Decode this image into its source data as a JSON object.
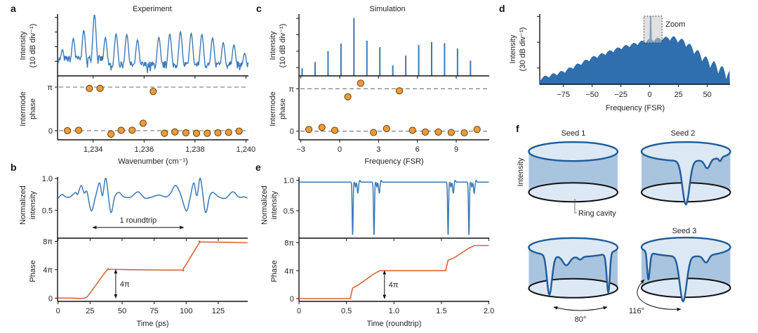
{
  "panel_labels": {
    "a": "a",
    "b": "b",
    "c": "c",
    "d": "d",
    "e": "e",
    "f": "f"
  },
  "colors": {
    "intensity": "#3a78b8",
    "phase_line": "#d9643a",
    "phase_point": "#f29a36",
    "point_edge": "#4a3210",
    "dash": "#888888",
    "cyl_side": "#a9c4de",
    "cyl_top": "#dce8f4",
    "cyl_rim": "#1f5b9a"
  },
  "chart_data": [
    {
      "id": "a",
      "type": "line+scatter",
      "title": "Experiment",
      "xlabel": "Wavenumber (cm⁻¹)",
      "xlim": [
        1232.6,
        1240.1
      ],
      "xticks": [
        1234,
        1236,
        1238,
        1240
      ],
      "xtick_labels": [
        "1,234",
        "1,236",
        "1,238",
        "1,240"
      ],
      "top": {
        "ylabel": [
          "Intensity",
          "(10 dB div⁻¹)"
        ],
        "yticks_db": [
          10,
          20,
          30,
          40
        ],
        "ylim_db": [
          0,
          42
        ],
        "peaks": [
          [
            1232.79,
            16
          ],
          [
            1233.22,
            23.6
          ],
          [
            1233.63,
            29.2
          ],
          [
            1234.05,
            39.9
          ],
          [
            1234.48,
            24.2
          ],
          [
            1234.9,
            26.6
          ],
          [
            1235.32,
            26.3
          ],
          [
            1235.74,
            22.6
          ],
          [
            1236.58,
            24.4
          ],
          [
            1237.01,
            26.6
          ],
          [
            1237.43,
            28.2
          ],
          [
            1237.85,
            27.1
          ],
          [
            1238.27,
            26.3
          ],
          [
            1238.69,
            24
          ],
          [
            1239.11,
            20.7
          ],
          [
            1239.53,
            19.2
          ],
          [
            1239.95,
            13.5
          ]
        ]
      },
      "bottom": {
        "ylabel": [
          "Intermode",
          "phase"
        ],
        "ytick_labels": [
          "π",
          "0"
        ],
        "yticks_pi": [
          1,
          0
        ],
        "ylim_pi": [
          -0.21,
          1.26
        ],
        "points": [
          [
            1232.99,
            0
          ],
          [
            1233.43,
            0.01
          ],
          [
            1233.85,
            0.97
          ],
          [
            1234.27,
            0.97
          ],
          [
            1234.7,
            -0.08
          ],
          [
            1235.1,
            0.01
          ],
          [
            1235.53,
            0.01
          ],
          [
            1235.96,
            0.17
          ],
          [
            1236.36,
            0.9
          ],
          [
            1236.8,
            -0.06
          ],
          [
            1237.21,
            -0.03
          ],
          [
            1237.64,
            -0.05
          ],
          [
            1238.06,
            -0.06
          ],
          [
            1238.48,
            -0.06
          ],
          [
            1238.9,
            -0.05
          ],
          [
            1239.32,
            -0.04
          ],
          [
            1239.73,
            -0.01
          ]
        ]
      }
    },
    {
      "id": "b",
      "type": "line",
      "xlabel": "Time (ps)",
      "xlim": [
        0,
        148
      ],
      "xticks": [
        0,
        25,
        50,
        75,
        100,
        125
      ],
      "xtick_labels": [
        "0",
        "25",
        "50",
        "75",
        "100",
        "125"
      ],
      "top": {
        "ylabel": [
          "Normalized",
          "intensity"
        ],
        "yticks": [
          1.0,
          0.5
        ],
        "ytick_labels": [
          "1.0",
          "0.5"
        ],
        "points": [
          [
            0,
            0.69
          ],
          [
            3.1,
            0.75
          ],
          [
            5.8,
            0.71
          ],
          [
            9.5,
            0.71
          ],
          [
            13.5,
            0.78
          ],
          [
            15.3,
            0.75
          ],
          [
            18,
            0.89
          ],
          [
            20.4,
            0.77
          ],
          [
            22.6,
            0.79
          ],
          [
            25.9,
            0.49
          ],
          [
            29.2,
            0.71
          ],
          [
            32.3,
            0.93
          ],
          [
            34.7,
            0.73
          ],
          [
            37.4,
            1.0
          ],
          [
            41.1,
            0.47
          ],
          [
            44.2,
            0.71
          ],
          [
            47.4,
            0.78
          ],
          [
            51.5,
            0.71
          ],
          [
            56.9,
            0.71
          ],
          [
            62.4,
            0.79
          ],
          [
            67.9,
            0.69
          ],
          [
            73.4,
            0.71
          ],
          [
            78.8,
            0.74
          ],
          [
            84.3,
            0.71
          ],
          [
            87.9,
            0.77
          ],
          [
            91.6,
            0.89
          ],
          [
            95.3,
            0.77
          ],
          [
            100,
            0.49
          ],
          [
            102.9,
            0.68
          ],
          [
            105.8,
            0.93
          ],
          [
            108.4,
            0.73
          ],
          [
            111.1,
            1.0
          ],
          [
            115,
            0.47
          ],
          [
            118.1,
            0.71
          ],
          [
            120.8,
            0.78
          ],
          [
            125.4,
            0.71
          ],
          [
            130.8,
            0.69
          ],
          [
            136.3,
            0.79
          ],
          [
            140.9,
            0.71
          ],
          [
            145.4,
            0.71
          ],
          [
            147.8,
            0.69
          ]
        ],
        "annotation": {
          "text": "1 roundtrip",
          "from": 27,
          "to": 98,
          "level": 0.23
        }
      },
      "bottom": {
        "ylabel": [
          "Phase"
        ],
        "yticks_pi": [
          8,
          4,
          0
        ],
        "ytick_labels": [
          "8π",
          "4π",
          "0"
        ],
        "points": [
          [
            0,
            0
          ],
          [
            10,
            0
          ],
          [
            18,
            -0.05
          ],
          [
            22,
            0.1
          ],
          [
            25,
            0.7
          ],
          [
            38,
            3.9
          ],
          [
            41,
            4.05
          ],
          [
            60,
            4.0
          ],
          [
            95,
            3.95
          ],
          [
            98,
            4.2
          ],
          [
            110,
            7.7
          ],
          [
            113,
            7.9
          ],
          [
            148,
            7.8
          ]
        ],
        "annotation": {
          "text": "4π",
          "at": 45,
          "from": 0,
          "to": 4
        }
      }
    },
    {
      "id": "c",
      "type": "bar+scatter",
      "title": "Simulation",
      "xlabel": "Frequency (FSR)",
      "xlim": [
        -3.1,
        11.6
      ],
      "xticks": [
        -3,
        0,
        3,
        6,
        9
      ],
      "xtick_labels": [
        "−3",
        "0",
        "3",
        "6",
        "9"
      ],
      "top": {
        "ylabel": [
          "Intensity",
          "(10 dB div⁻¹)"
        ],
        "yticks_db": [
          5,
          15,
          25,
          35
        ],
        "ylim_db": [
          0,
          37
        ],
        "x": [
          -2.9,
          -1.9,
          -0.9,
          0.1,
          1.1,
          2.1,
          3.1,
          4.1,
          5.1,
          6.1,
          7.1,
          8.1,
          9.1,
          10.1
        ],
        "values_db": [
          4.6,
          8.4,
          15.1,
          19.7,
          35.2,
          21.4,
          17.5,
          6.4,
          12.4,
          18.8,
          20.6,
          19.9,
          16.7,
          9.3
        ]
      },
      "bottom": {
        "ylabel": [
          "Intermode",
          "phase"
        ],
        "ytick_labels": [
          "π",
          "0"
        ],
        "yticks_pi": [
          1,
          0
        ],
        "points": [
          [
            -2.38,
            0.04
          ],
          [
            -1.37,
            0.09
          ],
          [
            -0.38,
            0.02
          ],
          [
            0.63,
            0.81
          ],
          [
            1.62,
            1.13
          ],
          [
            2.61,
            -0.03
          ],
          [
            3.62,
            0.06
          ],
          [
            4.61,
            0.95
          ],
          [
            5.62,
            0.02
          ],
          [
            6.61,
            -0.02
          ],
          [
            7.62,
            -0.02
          ],
          [
            8.61,
            -0.03
          ],
          [
            9.62,
            -0.04
          ],
          [
            10.61,
            0.04
          ]
        ]
      }
    },
    {
      "id": "d",
      "type": "area",
      "xlabel": "Frequency (FSR)",
      "xlim": [
        -95.6,
        69.5
      ],
      "xticks": [
        -75,
        -50,
        -25,
        0,
        25,
        50
      ],
      "xtick_labels": [
        "−75",
        "−50",
        "−25",
        "0",
        "25",
        "50"
      ],
      "ylabel": [
        "Intensity",
        "(30 dB div⁻¹)"
      ],
      "yticks_db": [
        19,
        49,
        79
      ],
      "envelope": [
        [
          -95.6,
          8
        ],
        [
          -75,
          16
        ],
        [
          -50,
          32
        ],
        [
          -25,
          44
        ],
        [
          0,
          53
        ],
        [
          20,
          56
        ],
        [
          30,
          52
        ],
        [
          50,
          31
        ],
        [
          69.5,
          16
        ]
      ],
      "comb_period": 7,
      "spike": [
        1,
        79
      ],
      "zoom_box": {
        "label": "Zoom",
        "from": -5,
        "to": 10.7
      }
    },
    {
      "id": "e",
      "type": "line",
      "xlabel": "Time (roundtrip)",
      "xlim": [
        0,
        2
      ],
      "xticks": [
        0,
        0.5,
        1,
        1.5,
        2
      ],
      "xtick_labels": [
        "0",
        "0.5",
        "1.0",
        "1.5",
        "2.0"
      ],
      "top": {
        "ylabel": [
          "Normalized",
          "intensity"
        ],
        "yticks": [
          1.0,
          0.5
        ],
        "ytick_labels": [
          "1.0",
          "0.5"
        ],
        "baseline": 0.97,
        "dip_centers": [
          0.565,
          0.79,
          1.57,
          1.79
        ],
        "dip_min": 0.1
      },
      "bottom": {
        "ylabel": [
          "Phase"
        ],
        "yticks_pi": [
          8,
          4,
          0
        ],
        "ytick_labels": [
          "8π",
          "4π",
          "0"
        ],
        "steps": [
          [
            0,
            0
          ],
          [
            0.54,
            0
          ],
          [
            0.565,
            1.5
          ],
          [
            0.63,
            2.0
          ],
          [
            0.785,
            3.5
          ],
          [
            0.85,
            4.0
          ],
          [
            1.545,
            4.0
          ],
          [
            1.57,
            5.5
          ],
          [
            1.635,
            5.85
          ],
          [
            1.785,
            7.2
          ],
          [
            1.85,
            7.6
          ],
          [
            2.0,
            7.6
          ]
        ],
        "annotation": {
          "text": "4π",
          "at": 0.9,
          "from": 0,
          "to": 4
        }
      }
    },
    {
      "id": "f",
      "type": "diagram",
      "ylabel": "Intensity",
      "cylinders": [
        {
          "label": "Seed 1"
        },
        {
          "label": "Seed 2"
        },
        {
          "label": ""
        },
        {
          "label": "Seed 3"
        }
      ],
      "ring_label": "Ring cavity",
      "angle_1": "80°",
      "angle_2": "116°"
    }
  ]
}
